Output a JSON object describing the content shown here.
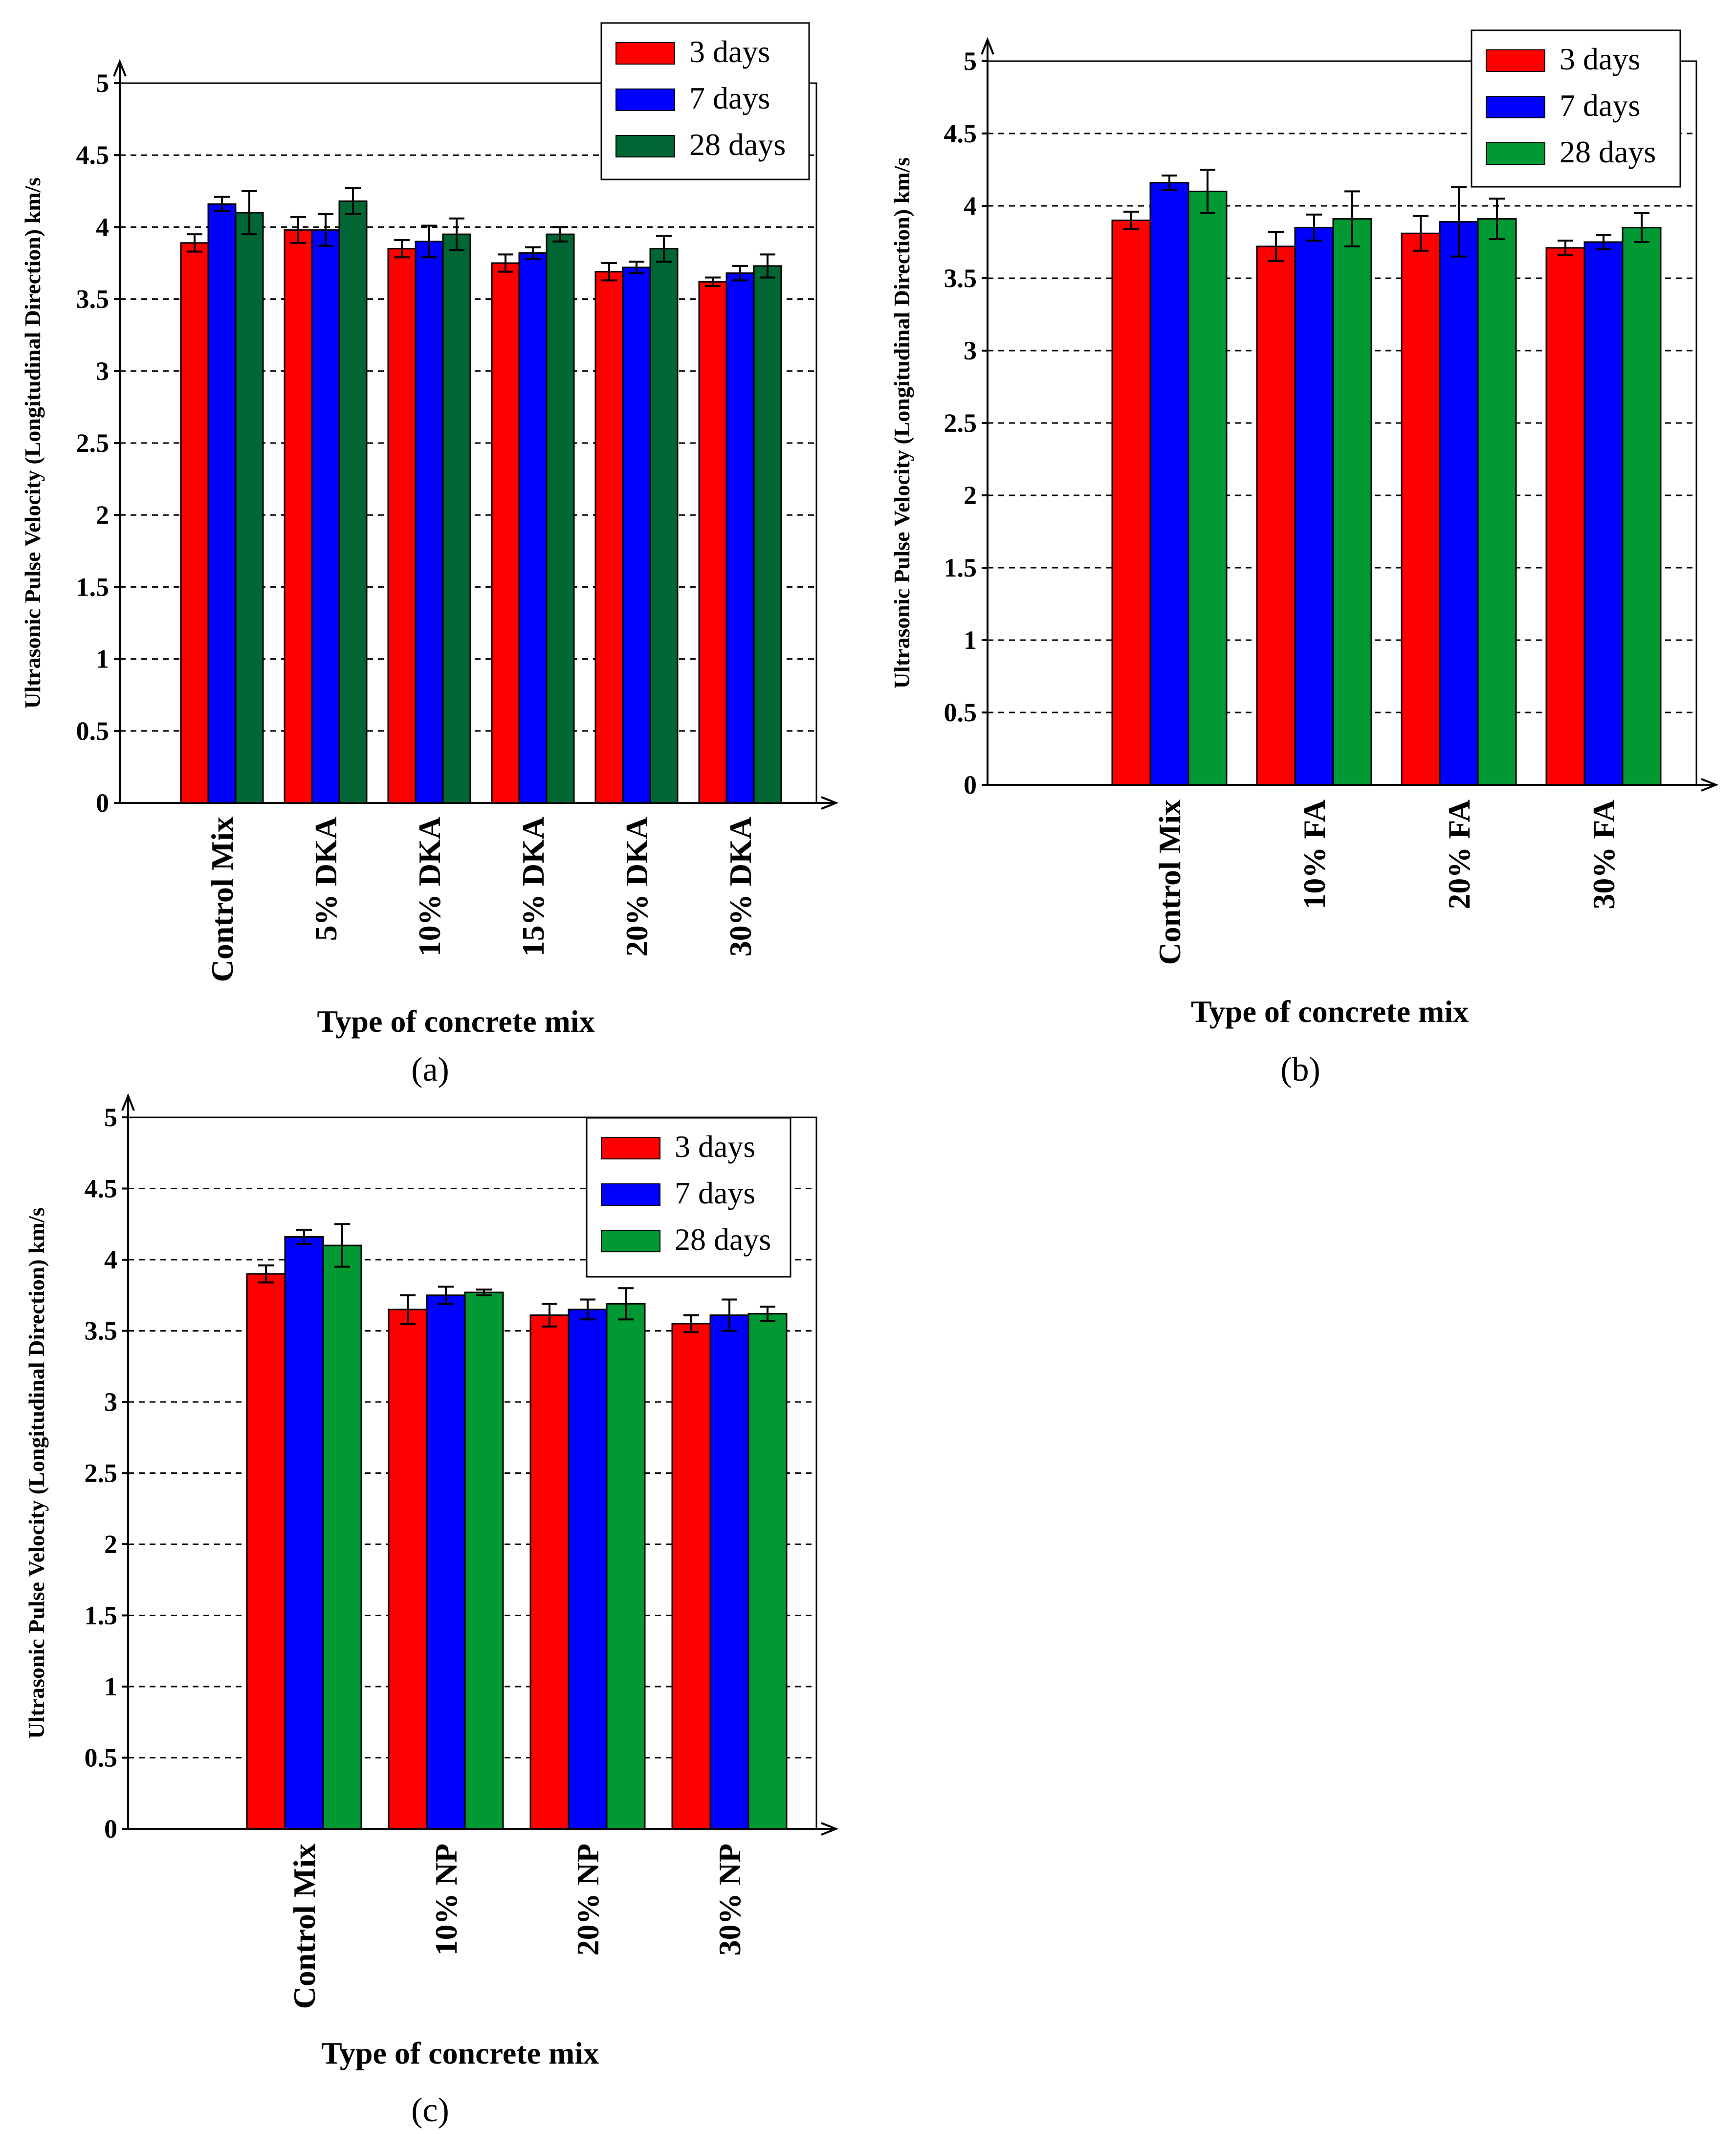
{
  "chart_data": [
    {
      "type": "bar",
      "panel": "a",
      "panel_label": "(a)",
      "title": "",
      "xlabel": "Type of concrete mix",
      "ylabel": "Ultrasonic Pulse Velocity (Longitudinal Direction) km/s",
      "ylim": [
        0,
        5
      ],
      "yticks": [
        "0",
        "0.5",
        "1",
        "1.5",
        "2",
        "2.5",
        "3",
        "3.5",
        "4",
        "4.5",
        "5"
      ],
      "grid": true,
      "legend_position": "top-right",
      "categories": [
        "Control Mix",
        "5% DKA",
        "10% DKA",
        "15% DKA",
        "20% DKA",
        "30% DKA"
      ],
      "series": [
        {
          "name": "3 days",
          "color": "#ff0000",
          "values": [
            3.89,
            3.98,
            3.85,
            3.75,
            3.69,
            3.62
          ],
          "errors": [
            0.06,
            0.09,
            0.06,
            0.06,
            0.06,
            0.03
          ]
        },
        {
          "name": "7 days",
          "color": "#0000ff",
          "values": [
            4.16,
            3.98,
            3.9,
            3.82,
            3.72,
            3.68
          ],
          "errors": [
            0.05,
            0.11,
            0.11,
            0.04,
            0.04,
            0.05
          ]
        },
        {
          "name": "28 days",
          "color": "#006633",
          "values": [
            4.1,
            4.18,
            3.95,
            3.95,
            3.85,
            3.73
          ],
          "errors": [
            0.15,
            0.09,
            0.11,
            0.05,
            0.09,
            0.08
          ]
        }
      ]
    },
    {
      "type": "bar",
      "panel": "b",
      "panel_label": "(b)",
      "title": "",
      "xlabel": "Type of concrete mix",
      "ylabel": "Ultrasonic Pulse Velocity (Longitudinal Direction) km/s",
      "ylim": [
        0,
        5
      ],
      "yticks": [
        "0",
        "0.5",
        "1",
        "1.5",
        "2",
        "2.5",
        "3",
        "3.5",
        "4",
        "4.5",
        "5"
      ],
      "grid": true,
      "legend_position": "top-right",
      "categories": [
        "Control Mix",
        "10% FA",
        "20% FA",
        "30% FA"
      ],
      "series": [
        {
          "name": "3 days",
          "color": "#ff0000",
          "values": [
            3.9,
            3.72,
            3.81,
            3.71
          ],
          "errors": [
            0.06,
            0.1,
            0.12,
            0.05
          ]
        },
        {
          "name": "7 days",
          "color": "#0000ff",
          "values": [
            4.16,
            3.85,
            3.89,
            3.75
          ],
          "errors": [
            0.05,
            0.09,
            0.24,
            0.05
          ]
        },
        {
          "name": "28 days",
          "color": "#009933",
          "values": [
            4.1,
            3.91,
            3.91,
            3.85
          ],
          "errors": [
            0.15,
            0.19,
            0.14,
            0.1
          ]
        }
      ]
    },
    {
      "type": "bar",
      "panel": "c",
      "panel_label": "(c)",
      "title": "",
      "xlabel": "Type of concrete mix",
      "ylabel": "Ultrasonic Pulse Velocity (Longitudinal Direction) km/s",
      "ylim": [
        0,
        5
      ],
      "yticks": [
        "0",
        "0.5",
        "1",
        "1.5",
        "2",
        "2.5",
        "3",
        "3.5",
        "4",
        "4.5",
        "5"
      ],
      "grid": true,
      "legend_position": "top-right",
      "categories": [
        "Control Mix",
        "10% NP",
        "20% NP",
        "30% NP"
      ],
      "series": [
        {
          "name": "3 days",
          "color": "#ff0000",
          "values": [
            3.9,
            3.65,
            3.61,
            3.55
          ],
          "errors": [
            0.06,
            0.1,
            0.08,
            0.06
          ]
        },
        {
          "name": "7 days",
          "color": "#0000ff",
          "values": [
            4.16,
            3.75,
            3.65,
            3.61
          ],
          "errors": [
            0.05,
            0.06,
            0.07,
            0.11
          ]
        },
        {
          "name": "28 days",
          "color": "#009933",
          "values": [
            4.1,
            3.77,
            3.69,
            3.62
          ],
          "errors": [
            0.15,
            0.02,
            0.11,
            0.05
          ]
        }
      ]
    }
  ]
}
